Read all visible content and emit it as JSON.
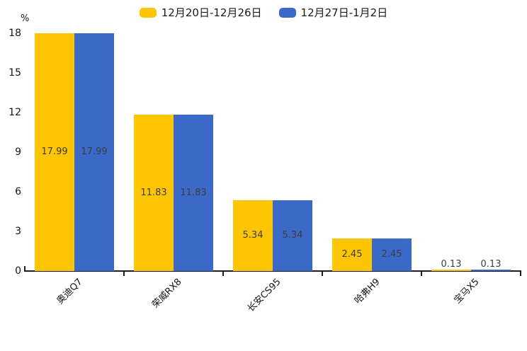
{
  "chart_data": {
    "type": "bar",
    "title": "",
    "unit_label": "%",
    "categories": [
      "奥迪Q7",
      "荣威RX8",
      "长安CS95",
      "哈弗H9",
      "宝马X5"
    ],
    "series": [
      {
        "name": "12月20日-12月26日",
        "color": "#FDC502",
        "values": [
          17.99,
          11.83,
          5.34,
          2.45,
          0.13
        ]
      },
      {
        "name": "12月27日-1月2日",
        "color": "#3B69C8",
        "values": [
          17.99,
          11.83,
          5.34,
          2.45,
          0.13
        ]
      }
    ],
    "value_labels": [
      [
        "17.99",
        "11.83",
        "5.34",
        "2.45",
        "0.13"
      ],
      [
        "17.99",
        "11.83",
        "5.34",
        "2.45",
        "0.13"
      ]
    ],
    "ylim": [
      0,
      18
    ],
    "yticks": [
      0,
      3,
      6,
      9,
      12,
      15,
      18
    ],
    "grid": false,
    "legend_position": "top",
    "colors": {
      "series_yellow": "#FDC502",
      "series_blue": "#3B69C8",
      "axis": "#1A1C21",
      "value_label_text": "#3D3D3D",
      "tick_label_text": "#15151A"
    }
  }
}
